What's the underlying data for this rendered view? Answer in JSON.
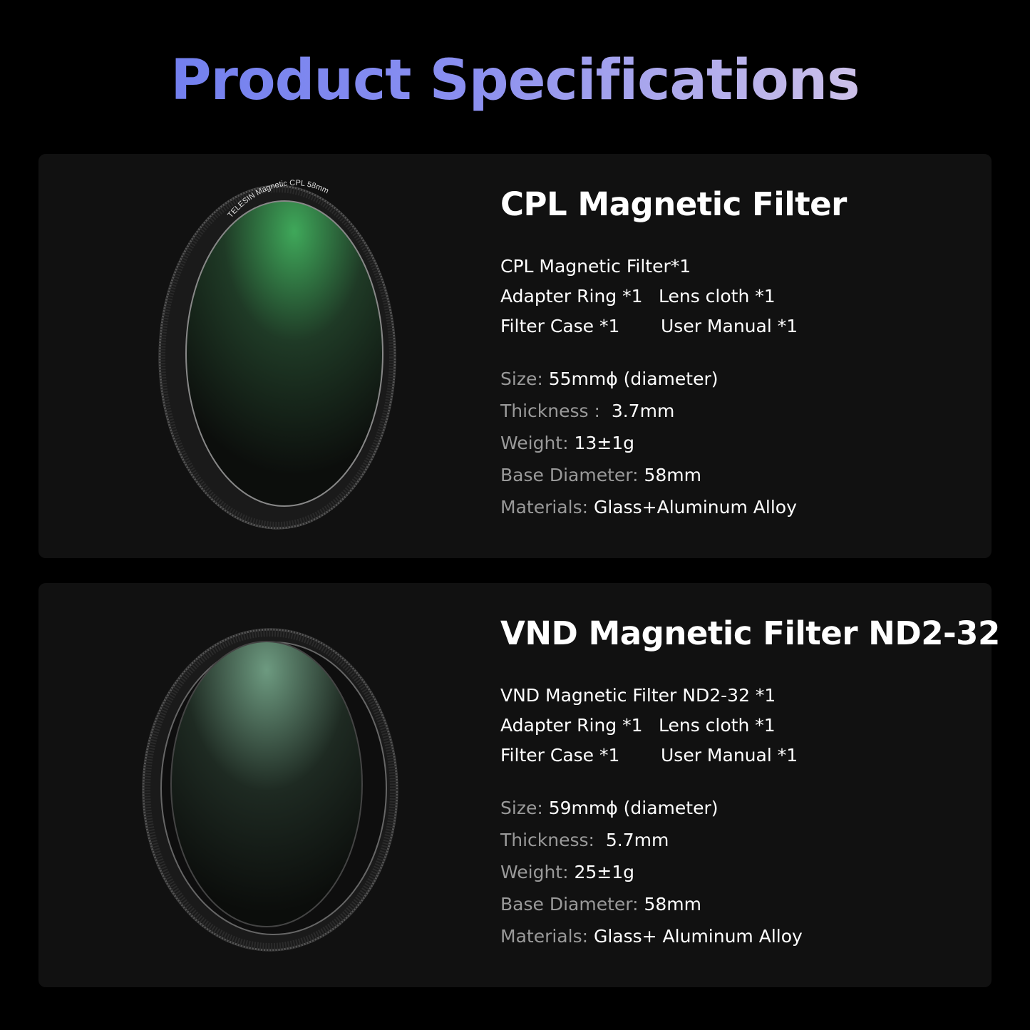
{
  "title": "Product Specifications",
  "products": [
    {
      "name": "CPL Magnetic Filter",
      "ring_text": "TELESIN Magnetic CPL 58mm",
      "items": [
        [
          "CPL Magnetic Filter*1"
        ],
        [
          "Adapter Ring *1",
          "Lens cloth *1"
        ],
        [
          "Filter Case *1",
          "User Manual *1"
        ]
      ],
      "specs": [
        {
          "label": "Size: ",
          "value": "55mmϕ (diameter)"
        },
        {
          "label": "Thickness :  ",
          "value": "3.7mm"
        },
        {
          "label": "Weight: ",
          "value": "13±1g"
        },
        {
          "label": "Base Diameter: ",
          "value": "58mm"
        },
        {
          "label": "Materials: ",
          "value": "Glass+Aluminum Alloy"
        }
      ],
      "glass_color": "#3fa85a"
    },
    {
      "name": "VND Magnetic Filter ND2-32",
      "items": [
        [
          "VND Magnetic Filter ND2-32 *1"
        ],
        [
          "Adapter Ring *1",
          "Lens cloth *1"
        ],
        [
          "Filter Case *1",
          "User Manual *1"
        ]
      ],
      "specs": [
        {
          "label": "Size: ",
          "value": "59mmϕ (diameter)"
        },
        {
          "label": "Thickness:  ",
          "value": "5.7mm"
        },
        {
          "label": "Weight: ",
          "value": "25±1g"
        },
        {
          "label": "Base Diameter: ",
          "value": "58mm"
        },
        {
          "label": "Materials: ",
          "value": "Glass+ Aluminum Alloy"
        }
      ],
      "glass_color": "#5e8a72"
    }
  ]
}
